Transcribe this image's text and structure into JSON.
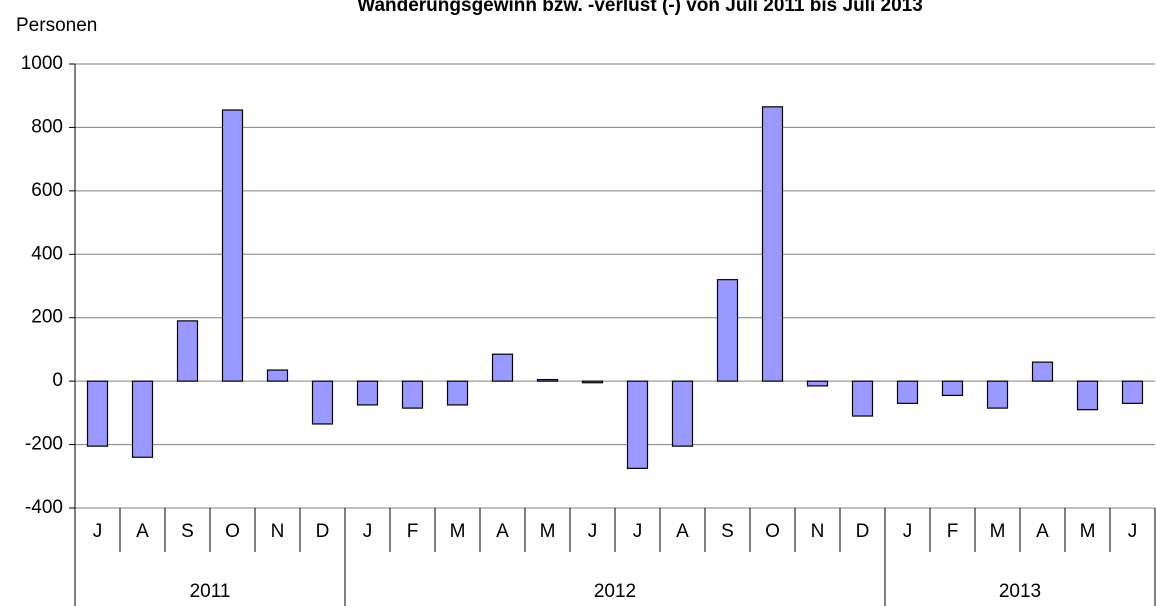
{
  "chart_data": {
    "type": "bar",
    "title": "Wanderungsgewinn bzw. -verlust (-) von Juli 2011 bis Juli 2013",
    "y_label": "Personen",
    "categories": [
      "J",
      "A",
      "S",
      "O",
      "N",
      "D",
      "J",
      "F",
      "M",
      "A",
      "M",
      "J",
      "J",
      "A",
      "S",
      "O",
      "N",
      "D",
      "J",
      "F",
      "M",
      "A",
      "M",
      "J"
    ],
    "groups": [
      {
        "label": "2011",
        "count": 6
      },
      {
        "label": "2012",
        "count": 12
      },
      {
        "label": "2013",
        "count": 6
      }
    ],
    "values": [
      -205,
      -240,
      190,
      855,
      35,
      -135,
      -75,
      -85,
      -75,
      85,
      5,
      -5,
      -275,
      -205,
      320,
      865,
      -15,
      -110,
      -70,
      -45,
      -85,
      60,
      -90,
      -70
    ],
    "color": "#9999ff",
    "ylim": [
      -400,
      1000
    ],
    "yticks": [
      -400,
      -200,
      0,
      200,
      400,
      600,
      800,
      1000
    ],
    "grid": true
  }
}
